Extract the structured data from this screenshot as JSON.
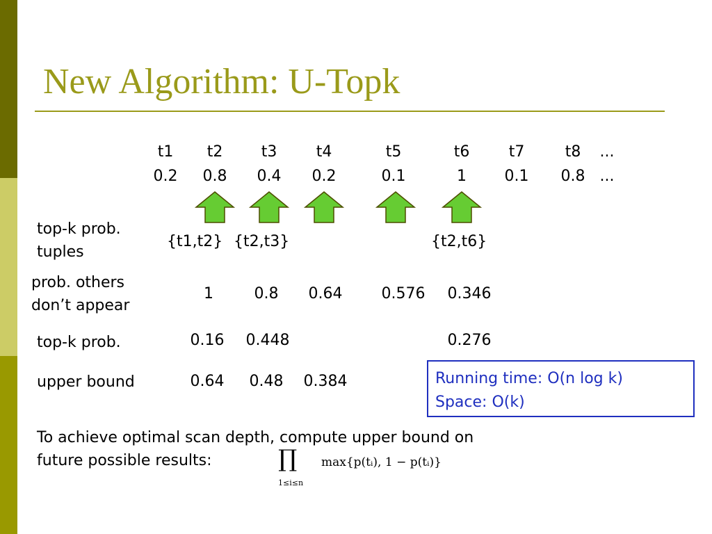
{
  "title": "New Algorithm: U-Topk",
  "tuples": {
    "ids": [
      "t1",
      "t2",
      "t3",
      "t4",
      "t5",
      "t6",
      "t7",
      "t8",
      "..."
    ],
    "probs": [
      "0.2",
      "0.8",
      "0.4",
      "0.2",
      "0.1",
      "1",
      "0.1",
      "0.8",
      "..."
    ]
  },
  "rows": [
    {
      "label": [
        "top-k prob.",
        "tuples"
      ],
      "values": [
        "{t1,t2}",
        "{t2,t3}",
        "{t2,t6}"
      ]
    },
    {
      "label": [
        "prob. others",
        "don’t appear"
      ],
      "values": [
        "1",
        "0.8",
        "0.64",
        "0.576",
        "0.346"
      ]
    },
    {
      "label": [
        "top-k prob."
      ],
      "values": [
        "0.16",
        "0.448",
        "0.276"
      ]
    },
    {
      "label": [
        "upper bound"
      ],
      "values": [
        "0.64",
        "0.48",
        "0.384"
      ]
    }
  ],
  "info_box": [
    "Running time: O(n log k)",
    "Space: O(k)"
  ],
  "note": [
    "To achieve optimal scan depth, compute upper bound on",
    "future possible results:"
  ],
  "formula": {
    "operator": "∏",
    "subscript": "1≤i≤n",
    "expression": "max{p(tᵢ), 1 − p(tᵢ)}"
  }
}
